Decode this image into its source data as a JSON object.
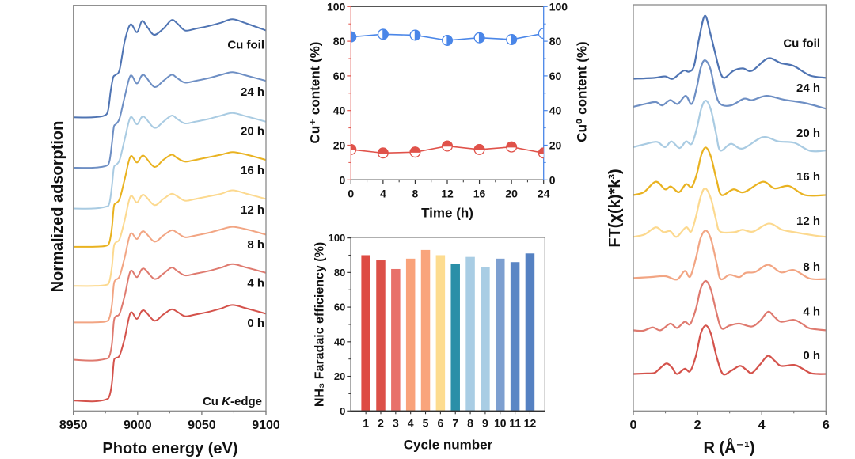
{
  "chart_data": [
    {
      "type": "line",
      "title": "",
      "xlabel": "Photo energy (eV)",
      "ylabel": "Normalized adsorption",
      "xlim": [
        8950,
        9100
      ],
      "ylim": [
        -0.12,
        4.55
      ],
      "xticks": [
        8950,
        9000,
        9050,
        9100
      ],
      "xticks_minor": [
        8975,
        9025,
        9075
      ],
      "yticks": [],
      "grid": false,
      "annotation": {
        "prefix": "Cu ",
        "italic": "K",
        "suffix": "-edge"
      },
      "series": [
        {
          "name": "0 h",
          "color": "#d4524b",
          "offset": 0,
          "x": [
            8950,
            8965,
            8975,
            8978,
            8980,
            8981.5,
            8983,
            8986,
            8990,
            8994.5,
            8999.5,
            9004.5,
            9013,
            9020,
            9026.5,
            9031,
            9037,
            9045,
            9055,
            9065,
            9074,
            9085,
            9100
          ],
          "y": [
            0,
            -0.01,
            0.01,
            0.05,
            0.2,
            0.45,
            0.49,
            0.52,
            0.72,
            1.01,
            0.94,
            1.04,
            0.92,
            0.99,
            1.05,
            1.02,
            0.97,
            0.99,
            1.02,
            1.06,
            1.1,
            1.06,
            1.0
          ]
        },
        {
          "name": "4 h",
          "color": "#df7a6f",
          "offset": 0.47,
          "x": [
            8950,
            8965,
            8975,
            8978,
            8980,
            8981.5,
            8983,
            8986,
            8990,
            8994.5,
            8999.5,
            9004.5,
            9013,
            9020,
            9026.5,
            9031,
            9037,
            9045,
            9055,
            9065,
            9074,
            9085,
            9100
          ],
          "y": [
            0,
            -0.01,
            0.01,
            0.04,
            0.18,
            0.44,
            0.5,
            0.53,
            0.74,
            1.02,
            0.95,
            1.05,
            0.93,
            0.99,
            1.06,
            1.02,
            0.97,
            0.99,
            1.02,
            1.06,
            1.1,
            1.06,
            1.0
          ]
        },
        {
          "name": "8 h",
          "color": "#f2a583",
          "offset": 0.9,
          "x": [
            8950,
            8965,
            8975,
            8978,
            8980,
            8981.5,
            8983,
            8986,
            8990,
            8994.5,
            8999.5,
            9004.5,
            9013,
            9020,
            9026.5,
            9031,
            9037,
            9045,
            9055,
            9065,
            9074,
            9085,
            9100
          ],
          "y": [
            0,
            0,
            0.01,
            0.05,
            0.2,
            0.44,
            0.49,
            0.53,
            0.75,
            1.02,
            0.96,
            1.05,
            0.93,
            1.0,
            1.06,
            1.03,
            0.98,
            1.0,
            1.03,
            1.07,
            1.1,
            1.07,
            1.01
          ]
        },
        {
          "name": "12 h",
          "color": "#fcd98f",
          "offset": 1.32,
          "x": [
            8950,
            8965,
            8975,
            8978,
            8980,
            8981.5,
            8983,
            8986,
            8990,
            8994.5,
            8999.5,
            9004.5,
            9013,
            9020,
            9026.5,
            9031,
            9037,
            9045,
            9055,
            9065,
            9074,
            9085,
            9100
          ],
          "y": [
            0,
            0,
            0.01,
            0.05,
            0.22,
            0.45,
            0.5,
            0.54,
            0.76,
            1.03,
            0.96,
            1.05,
            0.93,
            1.0,
            1.06,
            1.03,
            0.98,
            1.0,
            1.03,
            1.06,
            1.1,
            1.06,
            1.0
          ]
        },
        {
          "name": "16 h",
          "color": "#e9b220",
          "offset": 1.77,
          "x": [
            8950,
            8965,
            8975,
            8978,
            8980,
            8981.5,
            8983,
            8986,
            8990,
            8994.5,
            8999.5,
            9004.5,
            9013,
            9020,
            9026.5,
            9031,
            9037,
            9045,
            9055,
            9065,
            9074,
            9085,
            9100
          ],
          "y": [
            0,
            0,
            0.01,
            0.05,
            0.22,
            0.46,
            0.5,
            0.55,
            0.78,
            1.04,
            0.97,
            1.05,
            0.92,
            1.0,
            1.06,
            1.02,
            0.98,
            1.0,
            1.03,
            1.06,
            1.09,
            1.06,
            1.0
          ]
        },
        {
          "name": "20 h",
          "color": "#a9cbe2",
          "offset": 2.21,
          "x": [
            8950,
            8965,
            8975,
            8978,
            8980,
            8981.5,
            8983,
            8986,
            8990,
            8994.5,
            8999.5,
            9004.5,
            9013,
            9020,
            9026.5,
            9031,
            9037,
            9045,
            9055,
            9065,
            9074,
            9085,
            9100
          ],
          "y": [
            0,
            0,
            0.02,
            0.06,
            0.26,
            0.47,
            0.5,
            0.56,
            0.8,
            1.05,
            0.97,
            1.06,
            0.93,
            1.0,
            1.07,
            1.03,
            0.98,
            1.0,
            1.03,
            1.07,
            1.1,
            1.06,
            1.0
          ]
        },
        {
          "name": "24 h",
          "color": "#6e8fc4",
          "offset": 2.68,
          "x": [
            8950,
            8965,
            8975,
            8978,
            8980,
            8981.5,
            8983,
            8986,
            8990,
            8994.5,
            8999.5,
            9004.5,
            9013,
            9020,
            9026.5,
            9031,
            9037,
            9045,
            9055,
            9065,
            9074,
            9085,
            9100
          ],
          "y": [
            0,
            0,
            0.02,
            0.07,
            0.28,
            0.47,
            0.5,
            0.57,
            0.82,
            1.06,
            0.97,
            1.07,
            0.93,
            1.0,
            1.07,
            1.03,
            0.98,
            1.0,
            1.03,
            1.07,
            1.1,
            1.06,
            1.0
          ]
        },
        {
          "name": "Cu foil",
          "color": "#4f74b3",
          "offset": 3.26,
          "x": [
            8950,
            8965,
            8974,
            8977,
            8979,
            8981,
            8983,
            8986,
            8990,
            8994.5,
            8999.5,
            9003.5,
            9008,
            9013,
            9020,
            9026.5,
            9031,
            9037,
            9045,
            9055,
            9065,
            9074,
            9085,
            9100
          ],
          "y": [
            0,
            0,
            0.02,
            0.08,
            0.3,
            0.46,
            0.49,
            0.55,
            0.88,
            1.07,
            0.98,
            1.11,
            1.03,
            0.95,
            1.02,
            1.12,
            1.08,
            1.0,
            1.02,
            1.05,
            1.09,
            1.13,
            1.08,
            1.0
          ]
        }
      ]
    },
    {
      "type": "line",
      "title": "",
      "xlabel": "Time (h)",
      "ylabel_left": "Cu⁺ content (%)",
      "ylabel_right": "Cu⁰ content (%)",
      "x": [
        0,
        4,
        8,
        12,
        16,
        20,
        24
      ],
      "xlim": [
        0,
        24
      ],
      "ylim_left": [
        0,
        100
      ],
      "ylim_right": [
        0,
        100
      ],
      "xticks": [
        0,
        4,
        8,
        12,
        16,
        20,
        24
      ],
      "yticks_left": [
        0,
        20,
        40,
        60,
        80,
        100
      ],
      "yticks_right": [
        0,
        20,
        40,
        60,
        80,
        100
      ],
      "grid": false,
      "series": [
        {
          "name": "Cu⁺ content",
          "axis": "left",
          "color": "#e0524a",
          "marker": "half-filled-top",
          "values": [
            17.5,
            15.5,
            16,
            19.5,
            17.5,
            19,
            15.5
          ]
        },
        {
          "name": "Cu⁰ content",
          "axis": "right",
          "color": "#4a86e8",
          "marker": "half-filled-right",
          "values": [
            82.5,
            84,
            83.5,
            80.5,
            82,
            81,
            84.5
          ]
        }
      ]
    },
    {
      "type": "bar",
      "title": "",
      "xlabel": "Cycle number",
      "ylabel": "NH₃ Faradaic efficiency (%)",
      "categories": [
        "1",
        "2",
        "3",
        "4",
        "5",
        "6",
        "7",
        "8",
        "9",
        "10",
        "11",
        "12"
      ],
      "values": [
        90,
        87,
        82,
        88,
        93,
        90,
        85,
        89,
        83,
        88,
        86,
        91
      ],
      "colors": [
        "#de4b43",
        "#dc5048",
        "#e8716a",
        "#f9a27a",
        "#f9a47c",
        "#fddc90",
        "#2a8fa8",
        "#a9cde4",
        "#a9cde4",
        "#7d9fd0",
        "#5a86c5",
        "#5581c2"
      ],
      "ylim": [
        0,
        100
      ],
      "yticks": [
        0,
        20,
        40,
        60,
        80,
        100
      ],
      "grid": false
    },
    {
      "type": "line",
      "title": "",
      "xlabel": "R (Å⁻¹)",
      "ylabel": "FT(χ(k)*k³)",
      "xlim": [
        0,
        6
      ],
      "ylim": [
        -0.78,
        7.78
      ],
      "xticks": [
        0,
        2,
        4,
        6
      ],
      "xticks_minor": [
        1,
        3,
        5
      ],
      "yticks": [],
      "grid": false,
      "series": [
        {
          "name": "0 h",
          "color": "#d4524b",
          "offset": 0,
          "x": [
            0,
            0.35,
            0.65,
            0.8,
            1.03,
            1.2,
            1.36,
            1.6,
            1.77,
            1.95,
            2.1,
            2.26,
            2.42,
            2.6,
            2.79,
            3.05,
            3.32,
            3.5,
            3.69,
            3.95,
            4.19,
            4.4,
            4.6,
            5.01,
            5.25,
            5.51,
            5.75,
            6.0
          ],
          "y": [
            0,
            0.01,
            0.02,
            0.1,
            0.22,
            0.14,
            0.0,
            0.11,
            0.06,
            0.38,
            0.85,
            1.02,
            0.84,
            0.35,
            0.0,
            0.07,
            0.17,
            0.1,
            0.02,
            0.2,
            0.38,
            0.28,
            0.17,
            0.19,
            0.12,
            0.02,
            0.0,
            0.0
          ]
        },
        {
          "name": "4 h",
          "color": "#df7a6f",
          "offset": 0.92,
          "x": [
            0,
            0.3,
            0.6,
            0.85,
            1.15,
            1.36,
            1.6,
            1.77,
            1.95,
            2.1,
            2.26,
            2.42,
            2.6,
            2.75,
            3.0,
            3.3,
            3.69,
            3.95,
            4.2,
            4.4,
            4.6,
            5.0,
            5.25,
            5.5,
            6.0
          ],
          "y": [
            0,
            -0.01,
            0.06,
            0.0,
            0.14,
            0.05,
            0.18,
            0.13,
            0.45,
            0.88,
            1.04,
            0.85,
            0.35,
            0.04,
            0.1,
            0.14,
            0.08,
            0.2,
            0.39,
            0.28,
            0.18,
            0.22,
            0.14,
            0.04,
            0
          ]
        },
        {
          "name": "8 h",
          "color": "#f2a583",
          "offset": 2.02,
          "x": [
            0,
            0.5,
            1.0,
            1.36,
            1.6,
            1.77,
            1.95,
            2.1,
            2.26,
            2.42,
            2.6,
            2.72,
            3.0,
            3.3,
            3.5,
            3.8,
            4.2,
            4.6,
            5.0,
            5.5,
            6.0
          ],
          "y": [
            0,
            0.02,
            0.04,
            -0.03,
            0.15,
            0.03,
            0.42,
            0.85,
            1.0,
            0.82,
            0.3,
            -0.02,
            0.07,
            0.02,
            0.11,
            0.13,
            0.28,
            0.12,
            0.17,
            -0.01,
            -0.02
          ]
        },
        {
          "name": "12 h",
          "color": "#fcd98f",
          "offset": 2.89,
          "x": [
            0,
            0.35,
            0.7,
            0.94,
            1.15,
            1.35,
            1.64,
            1.8,
            1.95,
            2.1,
            2.24,
            2.42,
            2.58,
            2.71,
            3.16,
            3.4,
            3.73,
            4.22,
            4.63,
            5.0,
            5.62,
            6.0
          ],
          "y": [
            0,
            0.05,
            0.2,
            0.1,
            0.12,
            0.0,
            0.2,
            0.11,
            0.42,
            0.85,
            1.02,
            0.8,
            0.35,
            0.11,
            0.1,
            0.15,
            0.11,
            0.28,
            0.15,
            0.1,
            0.03,
            0
          ]
        },
        {
          "name": "16 h",
          "color": "#e9b220",
          "offset": 3.77,
          "x": [
            0,
            0.33,
            0.7,
            0.99,
            1.17,
            1.42,
            1.64,
            1.82,
            1.98,
            2.12,
            2.26,
            2.42,
            2.6,
            2.75,
            3.12,
            3.45,
            4.03,
            4.4,
            4.85,
            5.34,
            6.0
          ],
          "y": [
            0,
            0.06,
            0.28,
            0.12,
            0.18,
            0.06,
            0.23,
            0.17,
            0.45,
            0.85,
            1.0,
            0.8,
            0.3,
            0.0,
            0.12,
            0.06,
            0.28,
            0.14,
            0.19,
            0.0,
            0
          ]
        },
        {
          "name": "20 h",
          "color": "#a9cbe2",
          "offset": 4.78,
          "x": [
            0,
            0.41,
            0.74,
            0.99,
            1.19,
            1.44,
            1.64,
            1.82,
            1.98,
            2.12,
            2.26,
            2.42,
            2.58,
            2.71,
            3.04,
            3.41,
            4.03,
            4.52,
            5.02,
            5.51,
            6.0
          ],
          "y": [
            0,
            0.07,
            0.11,
            0.0,
            0.12,
            -0.02,
            0.12,
            0.07,
            0.4,
            0.82,
            0.98,
            0.78,
            0.28,
            -0.07,
            0.07,
            -0.03,
            0.21,
            0.12,
            0.09,
            -0.08,
            -0.07
          ]
        },
        {
          "name": "24 h",
          "color": "#6e8fc4",
          "offset": 5.63,
          "x": [
            0,
            0.37,
            0.7,
            0.9,
            1.15,
            1.38,
            1.63,
            1.82,
            1.98,
            2.1,
            2.23,
            2.4,
            2.56,
            2.71,
            3.04,
            3.45,
            3.7,
            4.15,
            4.69,
            5.34,
            6.0
          ],
          "y": [
            0,
            0.06,
            0.1,
            0.03,
            0.14,
            0.06,
            0.23,
            0.06,
            0.42,
            0.82,
            0.98,
            0.8,
            0.3,
            0.06,
            0.03,
            0.17,
            0.14,
            0.23,
            0.15,
            0.08,
            -0.04
          ]
        },
        {
          "name": "Cu foil",
          "color": "#4f74b3",
          "offset": 6.22,
          "x": [
            0,
            0.66,
            0.99,
            1.23,
            1.56,
            1.73,
            1.89,
            2.05,
            2.23,
            2.4,
            2.55,
            2.7,
            2.84,
            3.12,
            3.41,
            3.7,
            4.19,
            4.6,
            5.0,
            5.5,
            6.0
          ],
          "y": [
            0,
            0.02,
            0.05,
            0.0,
            0.17,
            0.15,
            0.27,
            0.85,
            1.33,
            0.95,
            0.54,
            0.15,
            0.02,
            0.17,
            0.22,
            0.17,
            0.43,
            0.33,
            0.27,
            0.07,
            0.02
          ]
        }
      ]
    }
  ]
}
